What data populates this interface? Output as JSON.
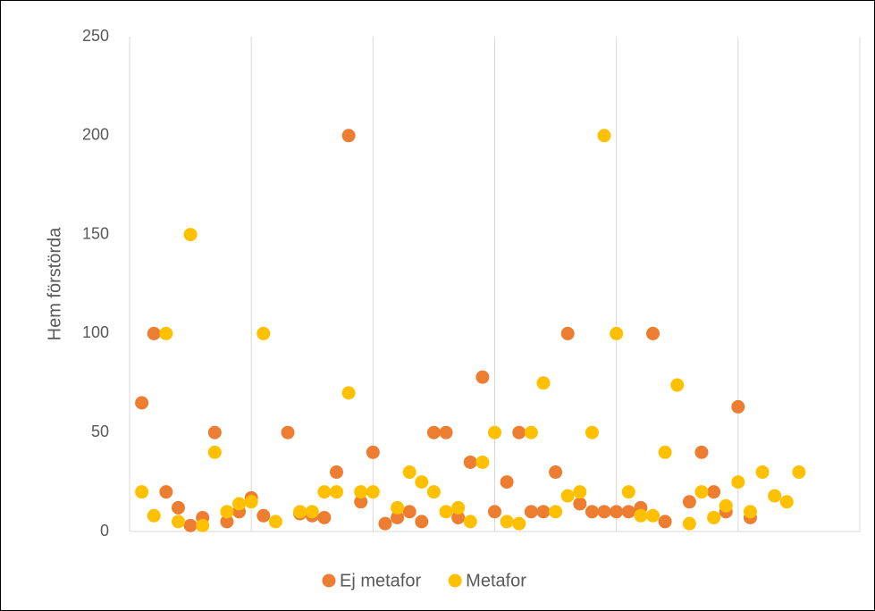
{
  "chart_data": {
    "type": "scatter",
    "y_label": "Hem förstörda",
    "x": [
      1,
      2,
      3,
      4,
      5,
      6,
      7,
      8,
      9,
      10,
      11,
      12,
      13,
      14,
      15,
      16,
      17,
      18,
      19,
      20,
      21,
      22,
      23,
      24,
      25,
      26,
      27,
      28,
      29,
      30,
      31,
      32,
      33,
      34,
      35,
      36,
      37,
      38,
      39,
      40,
      41,
      42,
      43,
      44,
      45,
      46,
      47,
      48,
      49,
      50,
      51,
      52,
      53,
      54,
      55
    ],
    "series": [
      {
        "name": "Ej metafor",
        "color": "#ED7D31",
        "values": [
          65,
          100,
          20,
          12,
          3,
          7,
          50,
          5,
          10,
          17,
          8,
          null,
          50,
          9,
          8,
          7,
          30,
          200,
          15,
          40,
          4,
          7,
          10,
          5,
          50,
          50,
          7,
          35,
          78,
          10,
          25,
          50,
          10,
          10,
          30,
          100,
          14,
          10,
          10,
          10,
          10,
          12,
          100,
          5,
          null,
          15,
          40,
          20,
          10,
          63,
          7,
          null,
          null,
          null,
          null
        ]
      },
      {
        "name": "Metafor",
        "color": "#FFC000",
        "values": [
          20,
          8,
          100,
          5,
          150,
          3,
          40,
          10,
          14,
          15,
          100,
          5,
          null,
          10,
          10,
          20,
          20,
          70,
          20,
          20,
          null,
          12,
          30,
          25,
          20,
          10,
          12,
          5,
          35,
          50,
          5,
          4,
          50,
          75,
          10,
          18,
          20,
          50,
          200,
          100,
          20,
          8,
          8,
          40,
          74,
          4,
          20,
          7,
          13,
          25,
          10,
          30,
          18,
          15,
          30
        ]
      }
    ],
    "xlim": [
      0,
      60
    ],
    "xticks": [
      0,
      10,
      20,
      30,
      40,
      50,
      60
    ],
    "xgrid": true,
    "ylim": [
      0,
      250
    ],
    "yticks": [
      0,
      50,
      100,
      150,
      200,
      250
    ],
    "legend": "bottom"
  }
}
